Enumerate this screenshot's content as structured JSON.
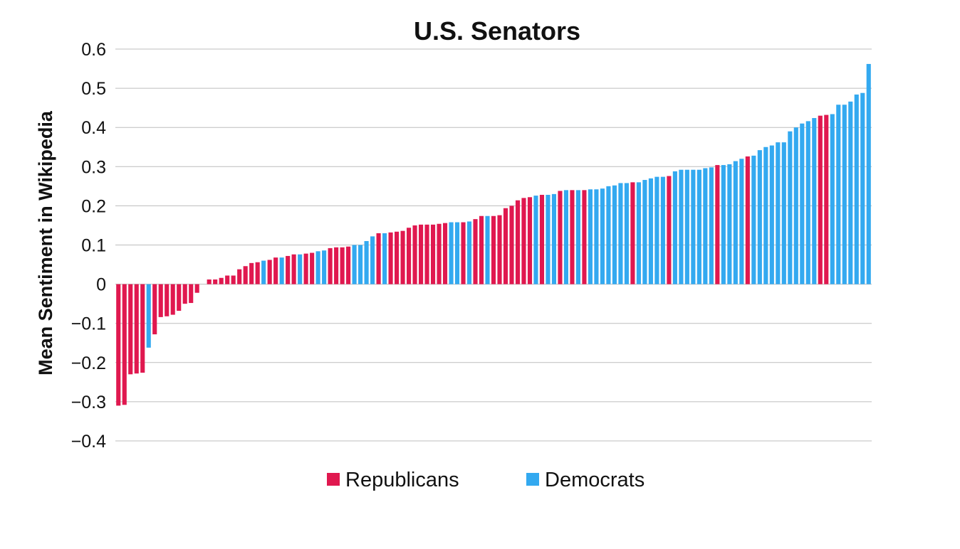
{
  "chart_data": {
    "type": "bar",
    "title": "U.S. Senators",
    "ylabel": "Mean Sentiment in Wikipedia",
    "xlabel": "",
    "ylim": [
      -0.4,
      0.6
    ],
    "yticks": [
      {
        "value": 0.6,
        "label": "0.6"
      },
      {
        "value": 0.5,
        "label": "0.5"
      },
      {
        "value": 0.4,
        "label": "0.4"
      },
      {
        "value": 0.3,
        "label": "0.3"
      },
      {
        "value": 0.2,
        "label": "0.2"
      },
      {
        "value": 0.1,
        "label": "0.1"
      },
      {
        "value": 0,
        "label": "0"
      },
      {
        "value": -0.1,
        "label": "−0.1"
      },
      {
        "value": -0.2,
        "label": "−0.2"
      },
      {
        "value": -0.3,
        "label": "−0.3"
      },
      {
        "value": -0.4,
        "label": "−0.4"
      }
    ],
    "grid": true,
    "legend_placement": "bottom-center",
    "series": [
      {
        "name": "Republicans",
        "color": "#e0184f"
      },
      {
        "name": "Democrats",
        "color": "#33a9f0"
      }
    ],
    "bars": [
      {
        "party": "Republicans",
        "value": -0.31
      },
      {
        "party": "Republicans",
        "value": -0.308
      },
      {
        "party": "Republicans",
        "value": -0.23
      },
      {
        "party": "Republicans",
        "value": -0.228
      },
      {
        "party": "Republicans",
        "value": -0.226
      },
      {
        "party": "Democrats",
        "value": -0.162
      },
      {
        "party": "Republicans",
        "value": -0.128
      },
      {
        "party": "Republicans",
        "value": -0.084
      },
      {
        "party": "Republicans",
        "value": -0.082
      },
      {
        "party": "Republicans",
        "value": -0.078
      },
      {
        "party": "Republicans",
        "value": -0.068
      },
      {
        "party": "Republicans",
        "value": -0.05
      },
      {
        "party": "Republicans",
        "value": -0.048
      },
      {
        "party": "Republicans",
        "value": -0.022
      },
      {
        "party": "Republicans",
        "value": 0
      },
      {
        "party": "Republicans",
        "value": 0.012
      },
      {
        "party": "Republicans",
        "value": 0.012
      },
      {
        "party": "Republicans",
        "value": 0.016
      },
      {
        "party": "Republicans",
        "value": 0.022
      },
      {
        "party": "Republicans",
        "value": 0.022
      },
      {
        "party": "Republicans",
        "value": 0.038
      },
      {
        "party": "Republicans",
        "value": 0.046
      },
      {
        "party": "Republicans",
        "value": 0.054
      },
      {
        "party": "Republicans",
        "value": 0.056
      },
      {
        "party": "Democrats",
        "value": 0.06
      },
      {
        "party": "Republicans",
        "value": 0.062
      },
      {
        "party": "Republicans",
        "value": 0.068
      },
      {
        "party": "Democrats",
        "value": 0.068
      },
      {
        "party": "Republicans",
        "value": 0.072
      },
      {
        "party": "Republicans",
        "value": 0.076
      },
      {
        "party": "Democrats",
        "value": 0.076
      },
      {
        "party": "Republicans",
        "value": 0.078
      },
      {
        "party": "Republicans",
        "value": 0.08
      },
      {
        "party": "Democrats",
        "value": 0.084
      },
      {
        "party": "Democrats",
        "value": 0.086
      },
      {
        "party": "Republicans",
        "value": 0.092
      },
      {
        "party": "Republicans",
        "value": 0.094
      },
      {
        "party": "Republicans",
        "value": 0.094
      },
      {
        "party": "Republicans",
        "value": 0.096
      },
      {
        "party": "Democrats",
        "value": 0.1
      },
      {
        "party": "Democrats",
        "value": 0.1
      },
      {
        "party": "Democrats",
        "value": 0.11
      },
      {
        "party": "Democrats",
        "value": 0.122
      },
      {
        "party": "Republicans",
        "value": 0.13
      },
      {
        "party": "Democrats",
        "value": 0.13
      },
      {
        "party": "Republicans",
        "value": 0.132
      },
      {
        "party": "Republicans",
        "value": 0.134
      },
      {
        "party": "Republicans",
        "value": 0.136
      },
      {
        "party": "Republicans",
        "value": 0.144
      },
      {
        "party": "Republicans",
        "value": 0.15
      },
      {
        "party": "Republicans",
        "value": 0.152
      },
      {
        "party": "Republicans",
        "value": 0.152
      },
      {
        "party": "Republicans",
        "value": 0.152
      },
      {
        "party": "Republicans",
        "value": 0.154
      },
      {
        "party": "Republicans",
        "value": 0.156
      },
      {
        "party": "Democrats",
        "value": 0.158
      },
      {
        "party": "Democrats",
        "value": 0.158
      },
      {
        "party": "Republicans",
        "value": 0.158
      },
      {
        "party": "Democrats",
        "value": 0.16
      },
      {
        "party": "Republicans",
        "value": 0.166
      },
      {
        "party": "Republicans",
        "value": 0.174
      },
      {
        "party": "Democrats",
        "value": 0.174
      },
      {
        "party": "Republicans",
        "value": 0.174
      },
      {
        "party": "Republicans",
        "value": 0.176
      },
      {
        "party": "Republicans",
        "value": 0.194
      },
      {
        "party": "Republicans",
        "value": 0.2
      },
      {
        "party": "Republicans",
        "value": 0.214
      },
      {
        "party": "Republicans",
        "value": 0.22
      },
      {
        "party": "Republicans",
        "value": 0.222
      },
      {
        "party": "Democrats",
        "value": 0.226
      },
      {
        "party": "Republicans",
        "value": 0.228
      },
      {
        "party": "Democrats",
        "value": 0.228
      },
      {
        "party": "Democrats",
        "value": 0.23
      },
      {
        "party": "Republicans",
        "value": 0.238
      },
      {
        "party": "Democrats",
        "value": 0.24
      },
      {
        "party": "Republicans",
        "value": 0.24
      },
      {
        "party": "Democrats",
        "value": 0.24
      },
      {
        "party": "Republicans",
        "value": 0.24
      },
      {
        "party": "Democrats",
        "value": 0.242
      },
      {
        "party": "Democrats",
        "value": 0.242
      },
      {
        "party": "Democrats",
        "value": 0.244
      },
      {
        "party": "Democrats",
        "value": 0.25
      },
      {
        "party": "Democrats",
        "value": 0.252
      },
      {
        "party": "Democrats",
        "value": 0.258
      },
      {
        "party": "Democrats",
        "value": 0.258
      },
      {
        "party": "Republicans",
        "value": 0.26
      },
      {
        "party": "Democrats",
        "value": 0.26
      },
      {
        "party": "Democrats",
        "value": 0.266
      },
      {
        "party": "Democrats",
        "value": 0.27
      },
      {
        "party": "Democrats",
        "value": 0.274
      },
      {
        "party": "Democrats",
        "value": 0.274
      },
      {
        "party": "Republicans",
        "value": 0.276
      },
      {
        "party": "Democrats",
        "value": 0.288
      },
      {
        "party": "Democrats",
        "value": 0.292
      },
      {
        "party": "Democrats",
        "value": 0.292
      },
      {
        "party": "Democrats",
        "value": 0.292
      },
      {
        "party": "Democrats",
        "value": 0.292
      },
      {
        "party": "Democrats",
        "value": 0.296
      },
      {
        "party": "Democrats",
        "value": 0.298
      },
      {
        "party": "Republicans",
        "value": 0.304
      },
      {
        "party": "Democrats",
        "value": 0.304
      },
      {
        "party": "Democrats",
        "value": 0.306
      },
      {
        "party": "Democrats",
        "value": 0.314
      },
      {
        "party": "Democrats",
        "value": 0.32
      },
      {
        "party": "Republicans",
        "value": 0.326
      },
      {
        "party": "Democrats",
        "value": 0.328
      },
      {
        "party": "Democrats",
        "value": 0.342
      },
      {
        "party": "Democrats",
        "value": 0.35
      },
      {
        "party": "Democrats",
        "value": 0.354
      },
      {
        "party": "Democrats",
        "value": 0.362
      },
      {
        "party": "Democrats",
        "value": 0.362
      },
      {
        "party": "Democrats",
        "value": 0.39
      },
      {
        "party": "Democrats",
        "value": 0.4
      },
      {
        "party": "Democrats",
        "value": 0.41
      },
      {
        "party": "Democrats",
        "value": 0.416
      },
      {
        "party": "Democrats",
        "value": 0.424
      },
      {
        "party": "Republicans",
        "value": 0.43
      },
      {
        "party": "Republicans",
        "value": 0.432
      },
      {
        "party": "Democrats",
        "value": 0.434
      },
      {
        "party": "Democrats",
        "value": 0.458
      },
      {
        "party": "Democrats",
        "value": 0.458
      },
      {
        "party": "Democrats",
        "value": 0.466
      },
      {
        "party": "Democrats",
        "value": 0.484
      },
      {
        "party": "Democrats",
        "value": 0.488
      },
      {
        "party": "Democrats",
        "value": 0.562
      }
    ]
  }
}
